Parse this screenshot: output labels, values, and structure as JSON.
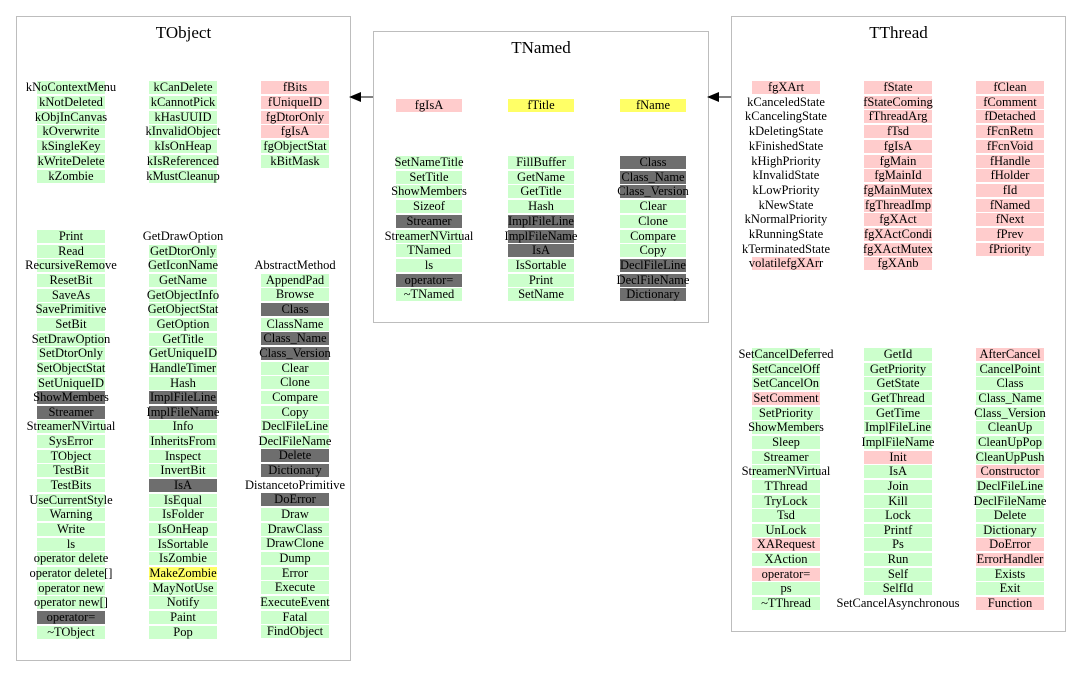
{
  "tobject": {
    "title": "TObject",
    "enums_col1": [
      "kNoContextMenu",
      "kNotDeleted",
      "kObjInCanvas",
      "kOverwrite",
      "kSingleKey",
      "kWriteDelete",
      "kZombie"
    ],
    "enums_col2": [
      "kCanDelete",
      "kCannotPick",
      "kHasUUID",
      "kInvalidObject",
      "kIsOnHeap",
      "kIsReferenced",
      "kMustCleanup"
    ],
    "members": [
      "fBits",
      "fUniqueID",
      "fgDtorOnly",
      "fgIsA",
      "fgObjectStat",
      "kBitMask"
    ],
    "methods_col1": [
      "Print",
      "Read",
      "RecursiveRemove",
      "ResetBit",
      "SaveAs",
      "SavePrimitive",
      "SetBit",
      "SetDrawOption",
      "SetDtorOnly",
      "SetObjectStat",
      "SetUniqueID",
      "ShowMembers",
      "Streamer",
      "StreamerNVirtual",
      "SysError",
      "TObject",
      "TestBit",
      "TestBits",
      "UseCurrentStyle",
      "Warning",
      "Write",
      "ls",
      "operator delete",
      "operator delete[]",
      "operator new",
      "operator new[]",
      "operator=",
      "~TObject"
    ],
    "methods_col2": [
      "GetDrawOption",
      "GetDtorOnly",
      "GetIconName",
      "GetName",
      "GetObjectInfo",
      "GetObjectStat",
      "GetOption",
      "GetTitle",
      "GetUniqueID",
      "HandleTimer",
      "Hash",
      "ImplFileLine",
      "ImplFileName",
      "Info",
      "InheritsFrom",
      "Inspect",
      "InvertBit",
      "IsA",
      "IsEqual",
      "IsFolder",
      "IsOnHeap",
      "IsSortable",
      "IsZombie",
      "MakeZombie",
      "MayNotUse",
      "Notify",
      "Paint",
      "Pop"
    ],
    "methods_col3": [
      "AbstractMethod",
      "AppendPad",
      "Browse",
      "Class",
      "ClassName",
      "Class_Name",
      "Class_Version",
      "Clear",
      "Clone",
      "Compare",
      "Copy",
      "DeclFileLine",
      "DeclFileName",
      "Delete",
      "Dictionary",
      "DistancetoPrimitive",
      "DoError",
      "Draw",
      "DrawClass",
      "DrawClone",
      "Dump",
      "Error",
      "Execute",
      "ExecuteEvent",
      "Fatal",
      "FindObject"
    ]
  },
  "tnamed": {
    "title": "TNamed",
    "members": [
      "fgIsA",
      "fTitle",
      "fName"
    ],
    "methods_col1": [
      "SetNameTitle",
      "SetTitle",
      "ShowMembers",
      "Sizeof",
      "Streamer",
      "StreamerNVirtual",
      "TNamed",
      "ls",
      "operator=",
      "~TNamed"
    ],
    "methods_col2": [
      "FillBuffer",
      "GetName",
      "GetTitle",
      "Hash",
      "ImplFileLine",
      "ImplFileName",
      "IsA",
      "IsSortable",
      "Print",
      "SetName"
    ],
    "methods_col3": [
      "Class",
      "Class_Name",
      "Class_Version",
      "Clear",
      "Clone",
      "Compare",
      "Copy",
      "DeclFileLine",
      "DeclFileName",
      "Dictionary"
    ]
  },
  "tthread": {
    "title": "TThread",
    "members_col1": [
      "fgXArt",
      "kCanceledState",
      "kCancelingState",
      "kDeletingState",
      "kFinishedState",
      "kHighPriority",
      "kInvalidState",
      "kLowPriority",
      "kNewState",
      "kNormalPriority",
      "kRunningState",
      "kTerminatedState",
      "volatilefgXArr"
    ],
    "members_col2": [
      "fState",
      "fStateComing",
      "fThreadArg",
      "fTsd",
      "fgIsA",
      "fgMain",
      "fgMainId",
      "fgMainMutex",
      "fgThreadImp",
      "fgXAct",
      "fgXActCondi",
      "fgXActMutex",
      "fgXAnb"
    ],
    "members_col3": [
      "fClean",
      "fComment",
      "fDetached",
      "fFcnRetn",
      "fFcnVoid",
      "fHandle",
      "fHolder",
      "fId",
      "fNamed",
      "fNext",
      "fPrev",
      "fPriority"
    ],
    "methods_col1": [
      "SetCancelDeferred",
      "SetCancelOff",
      "SetCancelOn",
      "SetComment",
      "SetPriority",
      "ShowMembers",
      "Sleep",
      "Streamer",
      "StreamerNVirtual",
      "TThread",
      "TryLock",
      "Tsd",
      "UnLock",
      "XARequest",
      "XAction",
      "operator=",
      "ps",
      "~TThread"
    ],
    "methods_col2": [
      "GetId",
      "GetPriority",
      "GetState",
      "GetThread",
      "GetTime",
      "ImplFileLine",
      "ImplFileName",
      "Init",
      "IsA",
      "Join",
      "Kill",
      "Lock",
      "Printf",
      "Ps",
      "Run",
      "Self",
      "SelfId",
      "SetCancelAsynchronous"
    ],
    "methods_col3": [
      "AfterCancel",
      "CancelPoint",
      "Class",
      "Class_Name",
      "Class_Version",
      "CleanUp",
      "CleanUpPop",
      "CleanUpPush",
      "Constructor",
      "DeclFileLine",
      "DeclFileName",
      "Delete",
      "Dictionary",
      "DoError",
      "ErrorHandler",
      "Exists",
      "Exit",
      "Function"
    ]
  },
  "colors": {
    "public_method": "#ccffcc",
    "inherited_hidden": "#6e6e6e",
    "private": "#ffcccc",
    "protected": "#ffff66",
    "box_border": "#bdbdbd",
    "arrow": "#000000"
  }
}
